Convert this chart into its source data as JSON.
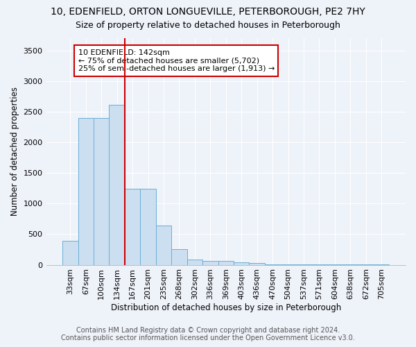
{
  "title1": "10, EDENFIELD, ORTON LONGUEVILLE, PETERBOROUGH, PE2 7HY",
  "title2": "Size of property relative to detached houses in Peterborough",
  "xlabel": "Distribution of detached houses by size in Peterborough",
  "ylabel": "Number of detached properties",
  "bar_color": "#ccdff0",
  "bar_edge_color": "#6aaed6",
  "vline_color": "#cc0000",
  "annotation_text": "10 EDENFIELD: 142sqm\n← 75% of detached houses are smaller (5,702)\n25% of semi-detached houses are larger (1,913) →",
  "annotation_box_color": "#ffffff",
  "annotation_box_edge_color": "#cc0000",
  "categories": [
    "33sqm",
    "67sqm",
    "100sqm",
    "134sqm",
    "167sqm",
    "201sqm",
    "235sqm",
    "268sqm",
    "302sqm",
    "336sqm",
    "369sqm",
    "403sqm",
    "436sqm",
    "470sqm",
    "504sqm",
    "537sqm",
    "571sqm",
    "604sqm",
    "638sqm",
    "672sqm",
    "705sqm"
  ],
  "values": [
    390,
    2400,
    2400,
    2610,
    1240,
    1240,
    640,
    255,
    90,
    60,
    60,
    45,
    30,
    8,
    4,
    3,
    2,
    1,
    1,
    1,
    1
  ],
  "ylim": [
    0,
    3700
  ],
  "yticks": [
    0,
    500,
    1000,
    1500,
    2000,
    2500,
    3000,
    3500
  ],
  "footer1": "Contains HM Land Registry data © Crown copyright and database right 2024.",
  "footer2": "Contains public sector information licensed under the Open Government Licence v3.0.",
  "background_color": "#eef2f9",
  "grid_color": "#ffffff",
  "title1_fontsize": 10,
  "title2_fontsize": 9,
  "axis_label_fontsize": 8.5,
  "tick_fontsize": 8,
  "footer_fontsize": 7,
  "annotation_fontsize": 8,
  "vline_index": 3.5
}
